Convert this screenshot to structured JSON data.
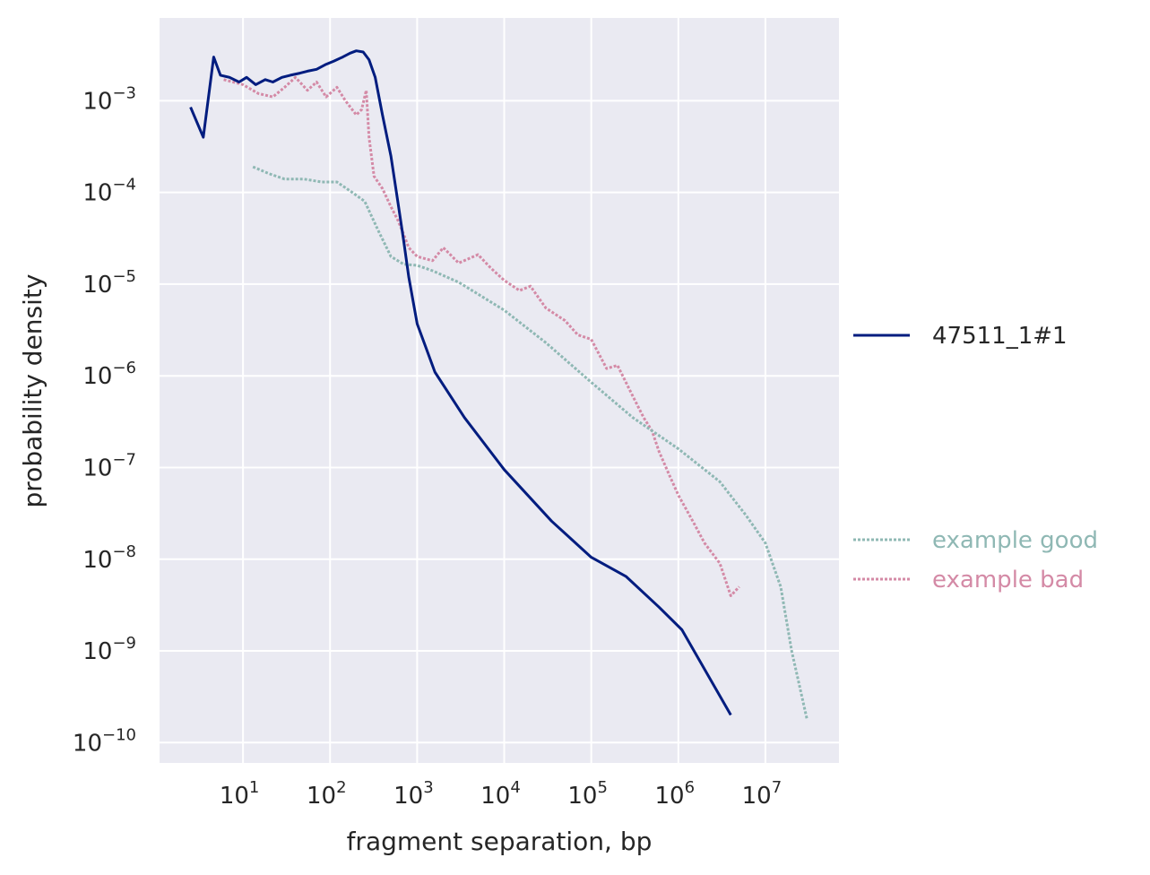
{
  "chart_data": {
    "type": "line",
    "xlabel": "fragment separation, bp",
    "ylabel": "probability density",
    "xscale": "log",
    "yscale": "log",
    "xlim": [
      1.1,
      70000000
    ],
    "ylim": [
      6e-11,
      0.008
    ],
    "grid": true,
    "x_ticks": [
      {
        "value": 10,
        "base": "10",
        "exp": "1"
      },
      {
        "value": 100,
        "base": "10",
        "exp": "2"
      },
      {
        "value": 1000,
        "base": "10",
        "exp": "3"
      },
      {
        "value": 10000,
        "base": "10",
        "exp": "4"
      },
      {
        "value": 100000,
        "base": "10",
        "exp": "5"
      },
      {
        "value": 1000000,
        "base": "10",
        "exp": "6"
      },
      {
        "value": 10000000,
        "base": "10",
        "exp": "7"
      }
    ],
    "y_ticks": [
      {
        "value": 0.001,
        "base": "10",
        "exp": "−3"
      },
      {
        "value": 0.0001,
        "base": "10",
        "exp": "−4"
      },
      {
        "value": 1e-05,
        "base": "10",
        "exp": "−5"
      },
      {
        "value": 1e-06,
        "base": "10",
        "exp": "−6"
      },
      {
        "value": 1e-07,
        "base": "10",
        "exp": "−7"
      },
      {
        "value": 1e-08,
        "base": "10",
        "exp": "−8"
      },
      {
        "value": 1e-09,
        "base": "10",
        "exp": "−9"
      },
      {
        "value": 1e-10,
        "base": "10",
        "exp": "−10"
      }
    ],
    "legend_position": "right",
    "series": [
      {
        "name": "47511_1#1",
        "color": "#001c7f",
        "style": "solid",
        "points": [
          [
            2.5,
            0.00085
          ],
          [
            3.5,
            0.0004
          ],
          [
            4.6,
            0.003
          ],
          [
            5.5,
            0.0019
          ],
          [
            7,
            0.0018
          ],
          [
            9,
            0.0016
          ],
          [
            11,
            0.0018
          ],
          [
            14,
            0.0015
          ],
          [
            18,
            0.0017
          ],
          [
            22,
            0.0016
          ],
          [
            28,
            0.0018
          ],
          [
            35,
            0.0019
          ],
          [
            45,
            0.002
          ],
          [
            55,
            0.0021
          ],
          [
            70,
            0.0022
          ],
          [
            90,
            0.0025
          ],
          [
            110,
            0.0027
          ],
          [
            140,
            0.003
          ],
          [
            170,
            0.0033
          ],
          [
            200,
            0.0035
          ],
          [
            240,
            0.0034
          ],
          [
            280,
            0.0028
          ],
          [
            330,
            0.0018
          ],
          [
            400,
            0.0007
          ],
          [
            500,
            0.00025
          ],
          [
            600,
            8e-05
          ],
          [
            700,
            3e-05
          ],
          [
            800,
            1.2e-05
          ],
          [
            1000,
            3.7e-06
          ],
          [
            1600,
            1.1e-06
          ],
          [
            3500,
            3.5e-07
          ],
          [
            10000,
            9.5e-08
          ],
          [
            35000,
            2.6e-08
          ],
          [
            100000,
            1.05e-08
          ],
          [
            250000,
            6.5e-09
          ],
          [
            600000,
            3e-09
          ],
          [
            1100000,
            1.7e-09
          ],
          [
            4000000,
            2e-10
          ]
        ]
      },
      {
        "name": "example good",
        "color": "#8fb8b4",
        "style": "dotted",
        "points": [
          [
            13,
            0.00019
          ],
          [
            20,
            0.00016
          ],
          [
            30,
            0.00014
          ],
          [
            50,
            0.00014
          ],
          [
            80,
            0.00013
          ],
          [
            120,
            0.00013
          ],
          [
            180,
            0.0001
          ],
          [
            250,
            8e-05
          ],
          [
            350,
            4e-05
          ],
          [
            500,
            2e-05
          ],
          [
            700,
            1.65e-05
          ],
          [
            1000,
            1.6e-05
          ],
          [
            1500,
            1.4e-05
          ],
          [
            3000,
            1.05e-05
          ],
          [
            10000,
            5.2e-06
          ],
          [
            30000,
            2.3e-06
          ],
          [
            100000,
            8.5e-07
          ],
          [
            300000,
            3.5e-07
          ],
          [
            1000000,
            1.6e-07
          ],
          [
            3000000,
            7e-08
          ],
          [
            6000000,
            3e-08
          ],
          [
            10000000,
            1.5e-08
          ],
          [
            15000000,
            5e-09
          ],
          [
            20000000,
            1e-09
          ],
          [
            30000000,
            1.8e-10
          ]
        ]
      },
      {
        "name": "example bad",
        "color": "#d48aa6",
        "style": "dotted",
        "points": [
          [
            6,
            0.0017
          ],
          [
            10,
            0.0015
          ],
          [
            15,
            0.0012
          ],
          [
            22,
            0.0011
          ],
          [
            30,
            0.0014
          ],
          [
            40,
            0.0018
          ],
          [
            55,
            0.0013
          ],
          [
            70,
            0.0016
          ],
          [
            90,
            0.0011
          ],
          [
            120,
            0.0014
          ],
          [
            150,
            0.001
          ],
          [
            200,
            0.0007
          ],
          [
            230,
            0.0008
          ],
          [
            260,
            0.0013
          ],
          [
            280,
            0.0004
          ],
          [
            320,
            0.00015
          ],
          [
            400,
            0.00011
          ],
          [
            500,
            7e-05
          ],
          [
            600,
            5e-05
          ],
          [
            700,
            3.5e-05
          ],
          [
            800,
            2.5e-05
          ],
          [
            1000,
            2e-05
          ],
          [
            1500,
            1.8e-05
          ],
          [
            2000,
            2.5e-05
          ],
          [
            3000,
            1.7e-05
          ],
          [
            5000,
            2.1e-05
          ],
          [
            7000,
            1.5e-05
          ],
          [
            10000,
            1.1e-05
          ],
          [
            15000,
            8.5e-06
          ],
          [
            20000,
            9.5e-06
          ],
          [
            30000,
            5.5e-06
          ],
          [
            50000,
            4e-06
          ],
          [
            70000,
            2.8e-06
          ],
          [
            100000,
            2.5e-06
          ],
          [
            150000,
            1.2e-06
          ],
          [
            200000,
            1.3e-06
          ],
          [
            300000,
            6e-07
          ],
          [
            400000,
            3.5e-07
          ],
          [
            500000,
            2.5e-07
          ],
          [
            600000,
            1.5e-07
          ],
          [
            800000,
            8e-08
          ],
          [
            1000000,
            5e-08
          ],
          [
            1500000,
            2.5e-08
          ],
          [
            2000000,
            1.5e-08
          ],
          [
            3000000,
            9e-09
          ],
          [
            4000000,
            4e-09
          ],
          [
            5000000,
            5e-09
          ]
        ]
      }
    ]
  }
}
